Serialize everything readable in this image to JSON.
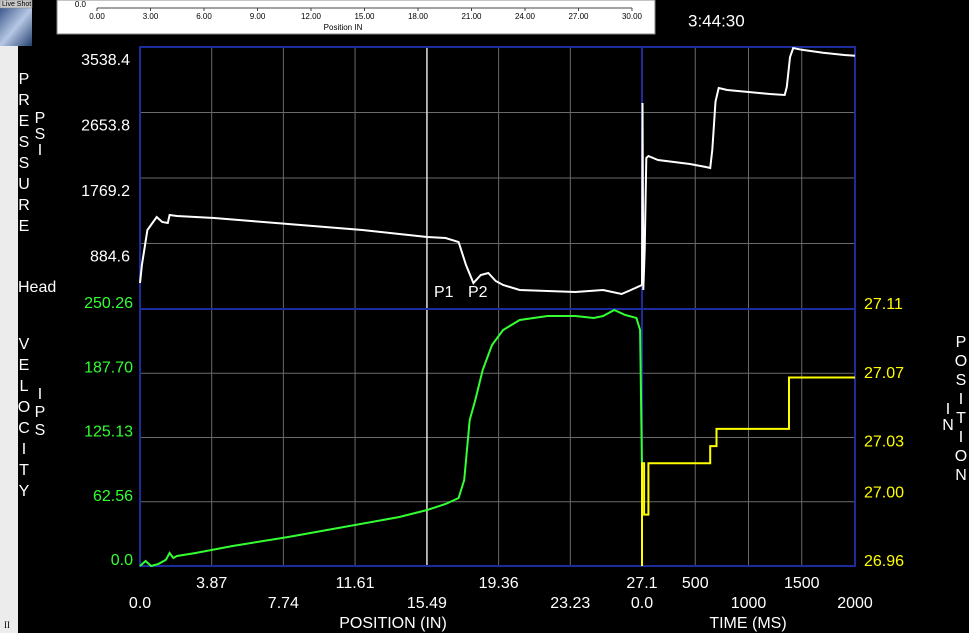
{
  "window": {
    "tab": "Live Shot",
    "footer": "II"
  },
  "chart_data": [
    {
      "type": "line",
      "timestamp": "3:44:30",
      "head_label": "Head",
      "markers": [
        "P1",
        "P2"
      ],
      "cursor": 15.49,
      "pressure_panel": {
        "ylabel": "PRESSURE",
        "yunit": "PSI",
        "ylim": [
          0,
          3538.4
        ],
        "yticks": [
          884.6,
          1769.2,
          2653.8,
          3538.4
        ],
        "color": "#ffffff"
      },
      "velocity_panel": {
        "ylabel": "VELOCITY",
        "yunit": "IPS",
        "ylim": [
          0,
          250.26
        ],
        "yticks": [
          {
            "value": 0,
            "label": "0.0"
          },
          62.56,
          125.13,
          {
            "value": 187.7,
            "label": "187.70"
          },
          250.26
        ],
        "color": "#33ff33",
        "y2label": "POSITION",
        "y2unit": "IN",
        "y2lim": [
          26.96,
          27.11
        ],
        "y2ticks": [
          26.96,
          {
            "value": 27,
            "label": "27.00"
          },
          27.03,
          27.07,
          27.11
        ],
        "y2color": "#ffff00"
      },
      "position_axis": {
        "xlabel": "POSITION (IN)",
        "xlim": [
          0,
          27.1
        ],
        "xticks": [
          {
            "value": 0,
            "label": "0.0"
          },
          3.87,
          7.74,
          11.61,
          15.49,
          19.36,
          23.23,
          27.1
        ]
      },
      "time_axis": {
        "xlabel": "TIME (MS)",
        "xlim": [
          0,
          2000
        ],
        "xticks": [
          {
            "value": 0,
            "label": "0.0"
          },
          500,
          1000,
          1500,
          2000
        ]
      },
      "grid": true,
      "series": [
        {
          "color": "#ffffff",
          "panel": "pressure",
          "x_axis": "position",
          "axis": "y",
          "x": [
            0,
            0.1,
            0.4,
            0.9,
            1.2,
            1.5,
            1.6,
            2,
            4,
            6,
            8,
            10,
            12,
            14,
            15.5,
            16.5,
            17.2,
            17.6,
            18,
            18.4,
            18.8,
            19.2,
            19.6,
            20.5,
            22,
            23.5,
            25,
            26,
            26.5,
            27.1
          ],
          "values": [
            351,
            594,
            1067,
            1242,
            1175,
            1161,
            1270,
            1256,
            1229,
            1188,
            1148,
            1107,
            1067,
            1013,
            972,
            959,
            905,
            594,
            351,
            459,
            486,
            378,
            324,
            257,
            243,
            230,
            257,
            203,
            257,
            324
          ]
        },
        {
          "color": "#ffffff",
          "panel": "pressure",
          "x_axis": "time",
          "axis": "y",
          "x": [
            0,
            5,
            12,
            25,
            40,
            60,
            150,
            300,
            450,
            600,
            640,
            660,
            690,
            720,
            800,
            1000,
            1200,
            1340,
            1360,
            1390,
            1420,
            1500,
            1700,
            1900,
            2000
          ],
          "values": [
            324,
            2782,
            257,
            797,
            2039,
            2066,
            2012,
            1985,
            1958,
            1918,
            1904,
            2150,
            2800,
            2985,
            2958,
            2931,
            2904,
            2890,
            3000,
            3400,
            3525,
            3500,
            3460,
            3430,
            3420
          ]
        },
        {
          "color": "#33ff33",
          "panel": "velocity",
          "x_axis": "position",
          "axis": "y",
          "x": [
            0,
            0.3,
            0.6,
            1,
            1.4,
            1.6,
            1.8,
            2,
            3,
            5,
            8,
            11,
            14,
            15.5,
            16.5,
            17.2,
            17.5,
            17.8,
            18.1,
            18.5,
            19,
            19.6,
            20.5,
            22,
            23.5,
            24.5,
            25,
            25.6,
            26.2,
            26.8,
            27,
            27.1
          ],
          "values": [
            0,
            4.9,
            0,
            2,
            6,
            12.7,
            7.8,
            9.7,
            12.7,
            19.5,
            28.2,
            38,
            47.7,
            54.5,
            60.4,
            66.2,
            83.7,
            142.2,
            161.6,
            190.9,
            215.2,
            229.8,
            239.5,
            243.4,
            243.4,
            241.5,
            243.4,
            249.3,
            244.4,
            241.5,
            229.8,
            93.5
          ]
        },
        {
          "color": "#ffff00",
          "panel": "velocity",
          "x_axis": "time",
          "axis": "y2",
          "x": [
            0,
            0,
            20,
            20,
            60,
            60,
            640,
            640,
            700,
            700,
            1380,
            1380,
            2000
          ],
          "values": [
            26.96,
            27.02,
            27.02,
            26.99,
            26.99,
            27.02,
            27.02,
            27.03,
            27.03,
            27.04,
            27.04,
            27.07,
            27.07
          ]
        }
      ]
    },
    {
      "type": "axis-strip",
      "xlabel": "Position IN",
      "xlim": [
        0,
        30
      ],
      "xticks": [
        {
          "value": 0,
          "label": "0.00"
        },
        {
          "value": 3,
          "label": "3.00"
        },
        {
          "value": 6,
          "label": "6.00"
        },
        {
          "value": 9,
          "label": "9.00"
        },
        {
          "value": 12,
          "label": "12.00"
        },
        {
          "value": 15,
          "label": "15.00"
        },
        {
          "value": 18,
          "label": "18.00"
        },
        {
          "value": 21,
          "label": "21.00"
        },
        {
          "value": 24,
          "label": "24.00"
        },
        {
          "value": 27,
          "label": "27.00"
        },
        {
          "value": 30,
          "label": "30.00"
        }
      ],
      "yticks": [
        {
          "value": 0,
          "label": "0.0"
        }
      ]
    }
  ]
}
